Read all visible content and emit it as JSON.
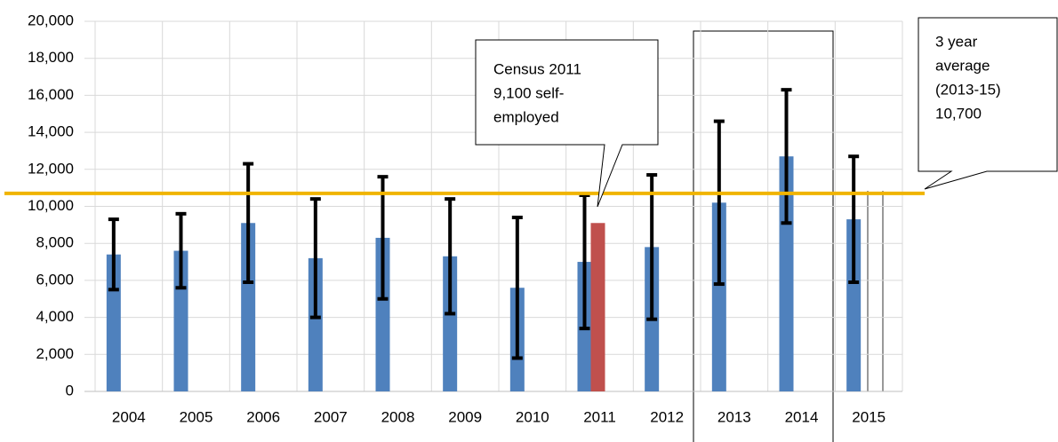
{
  "chart_data": {
    "type": "bar",
    "categories": [
      "2004",
      "2005",
      "2006",
      "2007",
      "2008",
      "2009",
      "2010",
      "2011",
      "2012",
      "2013",
      "2014",
      "2015"
    ],
    "series": [
      {
        "color": "#4f81bd",
        "values": [
          7400,
          7600,
          9100,
          7200,
          8300,
          7300,
          5600,
          7000,
          7800,
          10200,
          12700,
          9300
        ],
        "err_low": [
          5500,
          5600,
          5900,
          4000,
          5000,
          4200,
          1800,
          3400,
          3900,
          5800,
          9100,
          5900
        ],
        "err_high": [
          9300,
          9600,
          12300,
          10400,
          11600,
          10400,
          9400,
          10600,
          11700,
          14600,
          16300,
          12700
        ]
      },
      {
        "color": "#c0504d",
        "values": [
          null,
          null,
          null,
          null,
          null,
          null,
          null,
          9100,
          null,
          null,
          null,
          null
        ]
      }
    ],
    "ylim": [
      0,
      20000
    ],
    "yticks": [
      0,
      {
        "value": 2000,
        "label": "2,000"
      },
      {
        "value": 4000,
        "label": "4,000"
      },
      {
        "value": 6000,
        "label": "6,000"
      },
      {
        "value": 8000,
        "label": "8,000"
      },
      {
        "value": 10000,
        "label": "10,000"
      },
      {
        "value": 12000,
        "label": "12,000"
      },
      {
        "value": 14000,
        "label": "14,000"
      },
      {
        "value": 16000,
        "label": "16,000"
      },
      {
        "value": 18000,
        "label": "18,000"
      },
      {
        "value": 20000,
        "label": "20,000"
      }
    ],
    "grid": true,
    "reference_line": {
      "value": 10700,
      "color": "#f0b400"
    },
    "annotations": [
      {
        "lines": [
          "Census 2011",
          "9,100 self-",
          "employed"
        ]
      },
      {
        "lines": [
          "3 year",
          "average",
          "(2013-15)",
          "10,700"
        ]
      }
    ]
  }
}
